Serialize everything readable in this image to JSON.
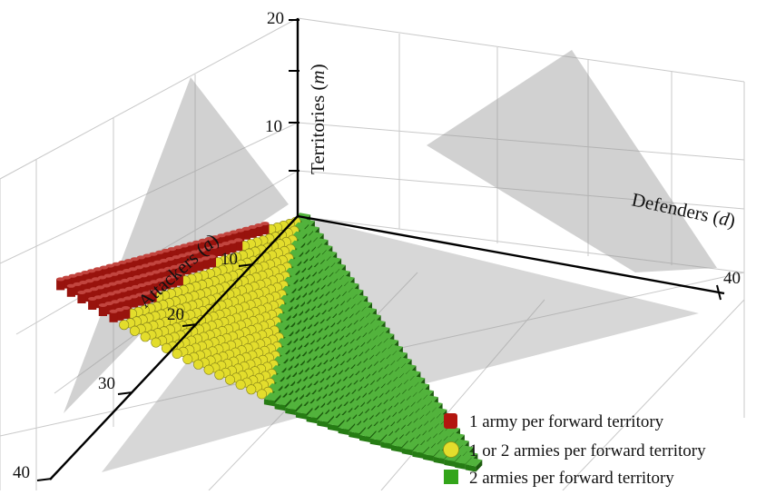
{
  "chart_data": {
    "type": "scatter3d",
    "title": "",
    "axes": {
      "attackers": {
        "label": "Attackers",
        "symbol": "a",
        "range": [
          0,
          40
        ],
        "ticks": [
          "10",
          "20",
          "30",
          "40"
        ]
      },
      "defenders": {
        "label": "Defenders",
        "symbol": "d",
        "range": [
          0,
          40
        ],
        "ticks": [
          "40"
        ]
      },
      "territories": {
        "label": "Territories",
        "symbol": "m",
        "range": [
          0,
          20
        ],
        "ticks": [
          "10",
          "20"
        ]
      }
    },
    "grid": true,
    "legend": {
      "placement": "bottom-right",
      "entries": [
        {
          "label": "1 army per forward territory",
          "color": "#b3160f",
          "marker": "cylinder"
        },
        {
          "label": "1 or 2 armies per forward territory",
          "color": "#e3dd2c",
          "marker": "sphere"
        },
        {
          "label": "2 armies per forward territory",
          "color": "#33a51a",
          "marker": "cube"
        }
      ]
    },
    "series": [
      {
        "name": "1 army per forward territory",
        "region": "m approx. equal to a (upper edge of surface)"
      },
      {
        "name": "1 or 2 armies per forward territory",
        "region": "a/2 < m < a"
      },
      {
        "name": "2 armies per forward territory",
        "region": "m approx. equal to a/2 (lower edge of surface)"
      }
    ],
    "surface": {
      "description": "shaded planes m = a and m = a/2"
    }
  }
}
